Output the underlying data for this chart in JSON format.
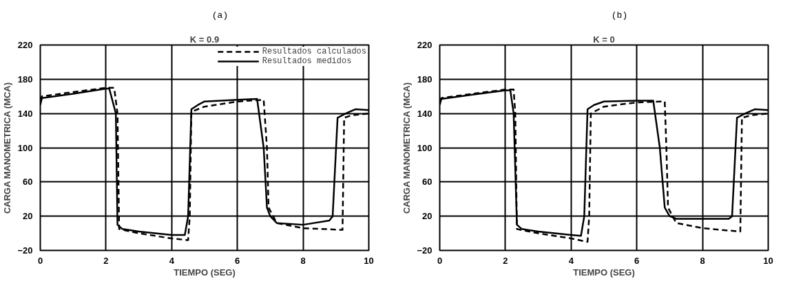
{
  "chart_data": [
    {
      "type": "line",
      "title": "(a)",
      "subtitle": "K = 0.9",
      "xlabel": "TIEMPO (SEG)",
      "ylabel": "CARGA MANOMETRICA (MCA)",
      "xlim": [
        0,
        10
      ],
      "xticks": [
        0,
        2,
        4,
        6,
        8,
        10
      ],
      "ylim": [
        -20,
        220
      ],
      "yticks": [
        -20,
        20,
        60,
        100,
        140,
        180,
        220
      ],
      "grid": true,
      "legend": "top right",
      "series": [
        {
          "name": "Resultados calculados",
          "color": "#000000",
          "line_style": "dashed",
          "x": [
            0,
            0.05,
            1,
            2,
            2.25,
            2.35,
            2.4,
            3,
            4,
            4.5,
            4.55,
            4.6,
            5,
            6,
            6.8,
            6.9,
            6.95,
            7.2,
            8,
            9.2,
            9.25,
            9.5,
            10
          ],
          "values": [
            155,
            160,
            165,
            170,
            170,
            140,
            5,
            0,
            -6,
            -8,
            20,
            142,
            148,
            154,
            156,
            100,
            30,
            12,
            6,
            4,
            135,
            138,
            140
          ]
        },
        {
          "name": "Resultados medidos",
          "color": "#000000",
          "line_style": "solid",
          "x": [
            0,
            0.05,
            1,
            2,
            2.1,
            2.3,
            2.35,
            2.5,
            3,
            4,
            4.4,
            4.5,
            4.6,
            4.8,
            5,
            6,
            6.6,
            6.8,
            6.9,
            7,
            7.2,
            8,
            8.8,
            8.9,
            9.05,
            9.3,
            9.6,
            10
          ],
          "values": [
            150,
            158,
            163,
            169,
            169,
            140,
            10,
            5,
            2,
            -2,
            -2,
            20,
            145,
            150,
            154,
            156,
            157,
            100,
            30,
            20,
            12,
            10,
            15,
            20,
            135,
            140,
            145,
            144
          ]
        }
      ]
    },
    {
      "type": "line",
      "title": "(b)",
      "subtitle": "K = 0",
      "xlabel": "TIEMPO (SEG)",
      "ylabel": "CARGA MANOMETRICA (MCA)",
      "xlim": [
        0,
        10
      ],
      "xticks": [
        0,
        2,
        4,
        6,
        8,
        10
      ],
      "ylim": [
        -20,
        220
      ],
      "yticks": [
        -20,
        20,
        60,
        100,
        140,
        180,
        220
      ],
      "grid": true,
      "series": [
        {
          "color": "#000000",
          "line_style": "dashed",
          "x": [
            0,
            0.05,
            1,
            2,
            2.25,
            2.3,
            2.35,
            3,
            4,
            4.5,
            4.55,
            4.6,
            5,
            6,
            6.85,
            6.9,
            6.95,
            7.2,
            8,
            9.15,
            9.2,
            9.5,
            10
          ],
          "values": [
            155,
            158,
            163,
            168,
            168,
            140,
            5,
            0,
            -6,
            -10,
            20,
            140,
            148,
            153,
            154,
            100,
            30,
            12,
            6,
            2,
            135,
            138,
            140
          ]
        },
        {
          "color": "#000000",
          "line_style": "solid",
          "x": [
            0,
            0.05,
            1,
            2,
            2.15,
            2.25,
            2.35,
            2.5,
            3,
            4,
            4.3,
            4.4,
            4.5,
            4.7,
            5,
            6,
            6.5,
            6.7,
            6.85,
            7,
            7.2,
            8,
            8.8,
            8.9,
            9.05,
            9.3,
            9.6,
            10
          ],
          "values": [
            150,
            157,
            162,
            167,
            167,
            140,
            10,
            5,
            2,
            -2,
            -3,
            20,
            145,
            150,
            154,
            155,
            155,
            100,
            30,
            20,
            17,
            17,
            17,
            20,
            135,
            140,
            145,
            144
          ]
        }
      ]
    }
  ]
}
